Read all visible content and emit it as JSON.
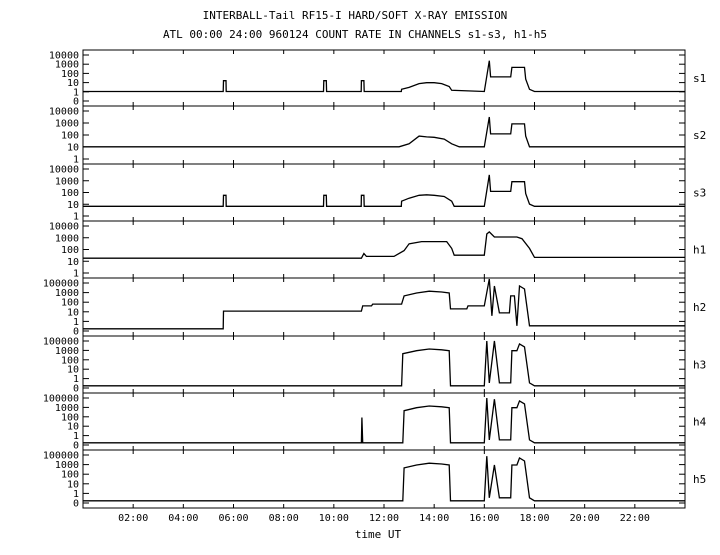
{
  "chart_data": {
    "type": "line",
    "title": "INTERBALL-Tail RF15-I HARD/SOFT X-RAY EMISSION",
    "subtitle": "ATL 00:00 24:00 960124  COUNT RATE IN CHANNELS s1-s3, h1-h5",
    "xlabel": "time UT",
    "x_unit": "hours UT",
    "xlim": [
      0,
      24
    ],
    "x_tick_labels": [
      "02:00",
      "04:00",
      "06:00",
      "08:00",
      "10:00",
      "12:00",
      "14:00",
      "16:00",
      "18:00",
      "20:00",
      "22:00"
    ],
    "x_tick_values": [
      2,
      4,
      6,
      8,
      10,
      12,
      14,
      16,
      18,
      20,
      22
    ],
    "y_scale": "log",
    "grid": false,
    "panels": [
      {
        "name": "s1",
        "y_tick_labels": [
          "10000",
          "1000",
          "100",
          "10",
          "1",
          "0"
        ],
        "series": [
          {
            "values": [
              [
                0,
                3
              ],
              [
                5.59,
                3
              ],
              [
                5.6,
                40
              ],
              [
                5.7,
                40
              ],
              [
                5.71,
                3
              ],
              [
                9.59,
                3
              ],
              [
                9.6,
                40
              ],
              [
                9.7,
                40
              ],
              [
                9.71,
                3
              ],
              [
                11.09,
                3
              ],
              [
                11.1,
                40
              ],
              [
                11.2,
                40
              ],
              [
                11.21,
                3
              ],
              [
                12.69,
                3
              ],
              [
                12.7,
                5
              ],
              [
                13.0,
                8
              ],
              [
                13.4,
                20
              ],
              [
                13.7,
                25
              ],
              [
                14.0,
                25
              ],
              [
                14.3,
                20
              ],
              [
                14.6,
                10
              ],
              [
                14.7,
                4
              ],
              [
                16.0,
                3
              ],
              [
                16.2,
                5000
              ],
              [
                16.25,
                100
              ],
              [
                16.6,
                100
              ],
              [
                17.05,
                100
              ],
              [
                17.1,
                1000
              ],
              [
                17.6,
                1000
              ],
              [
                17.65,
                60
              ],
              [
                17.8,
                5
              ],
              [
                18.0,
                3
              ],
              [
                24,
                3
              ]
            ]
          }
        ]
      },
      {
        "name": "s2",
        "y_tick_labels": [
          "10000",
          "1000",
          "100",
          "10",
          "1"
        ],
        "series": [
          {
            "values": [
              [
                0,
                5
              ],
              [
                12.6,
                5
              ],
              [
                13.0,
                10
              ],
              [
                13.4,
                60
              ],
              [
                13.7,
                50
              ],
              [
                14.0,
                45
              ],
              [
                14.4,
                30
              ],
              [
                14.7,
                10
              ],
              [
                15.0,
                5
              ],
              [
                16.0,
                5
              ],
              [
                16.2,
                5000
              ],
              [
                16.25,
                100
              ],
              [
                16.6,
                100
              ],
              [
                17.05,
                100
              ],
              [
                17.1,
                1000
              ],
              [
                17.6,
                1000
              ],
              [
                17.65,
                60
              ],
              [
                17.8,
                5
              ],
              [
                24,
                5
              ]
            ]
          }
        ]
      },
      {
        "name": "s3",
        "y_tick_labels": [
          "10000",
          "1000",
          "100",
          "10",
          "1"
        ],
        "series": [
          {
            "values": [
              [
                0,
                3
              ],
              [
                5.59,
                3
              ],
              [
                5.6,
                40
              ],
              [
                5.7,
                40
              ],
              [
                5.71,
                3
              ],
              [
                9.59,
                3
              ],
              [
                9.6,
                40
              ],
              [
                9.7,
                40
              ],
              [
                9.71,
                3
              ],
              [
                11.09,
                3
              ],
              [
                11.1,
                40
              ],
              [
                11.2,
                40
              ],
              [
                11.21,
                3
              ],
              [
                12.69,
                3
              ],
              [
                12.7,
                10
              ],
              [
                13.0,
                20
              ],
              [
                13.4,
                40
              ],
              [
                13.7,
                45
              ],
              [
                14.0,
                40
              ],
              [
                14.4,
                30
              ],
              [
                14.7,
                10
              ],
              [
                14.8,
                3
              ],
              [
                16.0,
                3
              ],
              [
                16.2,
                5000
              ],
              [
                16.25,
                100
              ],
              [
                16.6,
                100
              ],
              [
                17.05,
                100
              ],
              [
                17.1,
                1000
              ],
              [
                17.6,
                1000
              ],
              [
                17.65,
                60
              ],
              [
                17.8,
                5
              ],
              [
                18.0,
                3
              ],
              [
                24,
                3
              ]
            ]
          }
        ]
      },
      {
        "name": "h1",
        "y_tick_labels": [
          "10000",
          "1000",
          "100",
          "10",
          "1"
        ],
        "series": [
          {
            "values": [
              [
                0,
                10
              ],
              [
                10.0,
                10
              ],
              [
                11.1,
                10
              ],
              [
                11.2,
                30
              ],
              [
                11.3,
                15
              ],
              [
                12.4,
                15
              ],
              [
                12.8,
                60
              ],
              [
                13.0,
                300
              ],
              [
                13.5,
                500
              ],
              [
                14.0,
                500
              ],
              [
                14.5,
                500
              ],
              [
                14.7,
                100
              ],
              [
                14.8,
                20
              ],
              [
                16.0,
                20
              ],
              [
                16.1,
                3000
              ],
              [
                16.2,
                5000
              ],
              [
                16.4,
                1500
              ],
              [
                17.0,
                1500
              ],
              [
                17.3,
                1500
              ],
              [
                17.5,
                1000
              ],
              [
                17.8,
                100
              ],
              [
                18.0,
                12
              ],
              [
                24,
                12
              ]
            ]
          }
        ]
      },
      {
        "name": "h2",
        "y_tick_labels": [
          "100000",
          "1000",
          "100",
          "10",
          "1",
          "0"
        ],
        "series": [
          {
            "values": [
              [
                0,
                0.5
              ],
              [
                5.59,
                0.5
              ],
              [
                5.6,
                30
              ],
              [
                11.1,
                30
              ],
              [
                11.15,
                100
              ],
              [
                11.5,
                100
              ],
              [
                11.55,
                150
              ],
              [
                12.7,
                150
              ],
              [
                12.8,
                1000
              ],
              [
                13.3,
                2000
              ],
              [
                13.8,
                3000
              ],
              [
                14.3,
                2500
              ],
              [
                14.6,
                2000
              ],
              [
                14.65,
                50
              ],
              [
                15.3,
                50
              ],
              [
                15.35,
                100
              ],
              [
                16.0,
                100
              ],
              [
                16.2,
                50000
              ],
              [
                16.3,
                10
              ],
              [
                16.4,
                10000
              ],
              [
                16.6,
                20
              ],
              [
                17.0,
                20
              ],
              [
                17.05,
                1000
              ],
              [
                17.2,
                1000
              ],
              [
                17.3,
                1
              ],
              [
                17.4,
                10000
              ],
              [
                17.6,
                5000
              ],
              [
                17.8,
                1
              ],
              [
                24,
                1
              ]
            ]
          }
        ]
      },
      {
        "name": "h3",
        "y_tick_labels": [
          "100000",
          "1000",
          "100",
          "10",
          "1",
          "0"
        ],
        "series": [
          {
            "values": [
              [
                0,
                0.5
              ],
              [
                12.7,
                0.5
              ],
              [
                12.75,
                1000
              ],
              [
                13.3,
                2000
              ],
              [
                13.8,
                3000
              ],
              [
                14.3,
                2500
              ],
              [
                14.6,
                2000
              ],
              [
                14.65,
                0.5
              ],
              [
                16.0,
                0.5
              ],
              [
                16.1,
                20000
              ],
              [
                16.2,
                1
              ],
              [
                16.4,
                20000
              ],
              [
                16.6,
                1
              ],
              [
                17.05,
                1
              ],
              [
                17.1,
                2000
              ],
              [
                17.3,
                2000
              ],
              [
                17.4,
                10000
              ],
              [
                17.6,
                5000
              ],
              [
                17.8,
                1
              ],
              [
                18.0,
                0.5
              ],
              [
                24,
                0.5
              ]
            ]
          }
        ]
      },
      {
        "name": "h4",
        "y_tick_labels": [
          "100000",
          "1000",
          "100",
          "10",
          "1",
          "0"
        ],
        "series": [
          {
            "values": [
              [
                0,
                0.5
              ],
              [
                11.1,
                0.5
              ],
              [
                11.12,
                200
              ],
              [
                11.15,
                0.5
              ],
              [
                12.75,
                0.5
              ],
              [
                12.8,
                1000
              ],
              [
                13.3,
                2000
              ],
              [
                13.8,
                3000
              ],
              [
                14.3,
                2500
              ],
              [
                14.6,
                2000
              ],
              [
                14.65,
                0.5
              ],
              [
                16.0,
                0.5
              ],
              [
                16.1,
                20000
              ],
              [
                16.2,
                1
              ],
              [
                16.4,
                15000
              ],
              [
                16.6,
                1
              ],
              [
                17.05,
                1
              ],
              [
                17.1,
                2000
              ],
              [
                17.3,
                2000
              ],
              [
                17.4,
                10000
              ],
              [
                17.6,
                5000
              ],
              [
                17.8,
                1
              ],
              [
                18.0,
                0.5
              ],
              [
                24,
                0.5
              ]
            ]
          }
        ]
      },
      {
        "name": "h5",
        "y_tick_labels": [
          "100000",
          "1000",
          "100",
          "10",
          "1",
          "0"
        ],
        "series": [
          {
            "values": [
              [
                0,
                0.5
              ],
              [
                12.75,
                0.5
              ],
              [
                12.8,
                1000
              ],
              [
                13.3,
                2000
              ],
              [
                13.8,
                3000
              ],
              [
                14.3,
                2500
              ],
              [
                14.6,
                2000
              ],
              [
                14.65,
                0.5
              ],
              [
                16.0,
                0.5
              ],
              [
                16.1,
                15000
              ],
              [
                16.2,
                1
              ],
              [
                16.4,
                2000
              ],
              [
                16.6,
                1
              ],
              [
                17.05,
                1
              ],
              [
                17.1,
                2000
              ],
              [
                17.3,
                2000
              ],
              [
                17.4,
                10000
              ],
              [
                17.6,
                5000
              ],
              [
                17.8,
                1
              ],
              [
                18.0,
                0.5
              ],
              [
                24,
                0.5
              ]
            ]
          }
        ]
      }
    ]
  }
}
